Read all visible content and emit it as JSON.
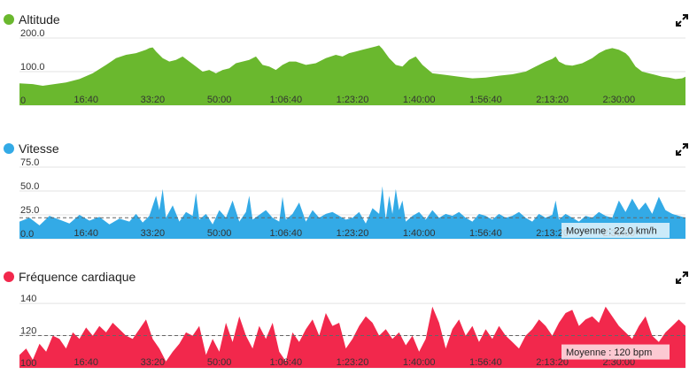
{
  "chart_data": [
    {
      "type": "area",
      "title": "Altitude",
      "color": "#6ab82e",
      "xlabel": "",
      "ylabel": "",
      "x_unit": "seconds",
      "xlim": [
        0,
        10000
      ],
      "ylim": [
        0,
        200
      ],
      "y_ticks": [
        {
          "value": 200,
          "label": "200.0"
        },
        {
          "value": 100,
          "label": "100.0"
        },
        {
          "value": 0,
          "label": "0"
        }
      ],
      "x_ticks": [
        {
          "value": 1000,
          "label": "16:40"
        },
        {
          "value": 2000,
          "label": "33:20"
        },
        {
          "value": 3000,
          "label": "50:00"
        },
        {
          "value": 4000,
          "label": "1:06:40"
        },
        {
          "value": 5000,
          "label": "1:23:20"
        },
        {
          "value": 6000,
          "label": "1:40:00"
        },
        {
          "value": 7000,
          "label": "1:56:40"
        },
        {
          "value": 8000,
          "label": "2:13:20"
        },
        {
          "value": 9000,
          "label": "2:30:00"
        }
      ],
      "x": [
        0,
        200,
        350,
        500,
        700,
        900,
        1100,
        1300,
        1450,
        1600,
        1750,
        1900,
        1950,
        2000,
        2050,
        2150,
        2250,
        2350,
        2450,
        2550,
        2650,
        2750,
        2850,
        2950,
        3050,
        3150,
        3250,
        3350,
        3450,
        3550,
        3650,
        3750,
        3850,
        3950,
        4050,
        4150,
        4300,
        4450,
        4600,
        4750,
        4850,
        4950,
        5050,
        5150,
        5250,
        5350,
        5400,
        5450,
        5550,
        5650,
        5750,
        5850,
        5950,
        6050,
        6200,
        6400,
        6600,
        6800,
        7000,
        7200,
        7400,
        7600,
        7750,
        7900,
        8000,
        8050,
        8100,
        8200,
        8300,
        8450,
        8600,
        8700,
        8800,
        8900,
        9000,
        9100,
        9150,
        9250,
        9350,
        9450,
        9550,
        9650,
        9750,
        9850,
        9950,
        10000
      ],
      "values": [
        65,
        63,
        58,
        62,
        68,
        78,
        95,
        120,
        140,
        150,
        155,
        165,
        170,
        172,
        160,
        140,
        130,
        135,
        145,
        130,
        115,
        100,
        105,
        95,
        105,
        110,
        125,
        130,
        135,
        145,
        120,
        115,
        105,
        120,
        130,
        130,
        120,
        125,
        140,
        150,
        145,
        155,
        160,
        165,
        170,
        175,
        178,
        168,
        140,
        120,
        115,
        135,
        145,
        120,
        95,
        90,
        85,
        80,
        82,
        88,
        92,
        100,
        115,
        130,
        138,
        145,
        130,
        120,
        118,
        125,
        140,
        155,
        165,
        170,
        165,
        155,
        145,
        115,
        100,
        95,
        90,
        85,
        82,
        78,
        80,
        85
      ]
    },
    {
      "type": "area",
      "title": "Vitesse",
      "color": "#33aae6",
      "xlabel": "",
      "ylabel": "",
      "x_unit": "seconds",
      "xlim": [
        0,
        10000
      ],
      "ylim": [
        0,
        75
      ],
      "y_ticks": [
        {
          "value": 75,
          "label": "75.0"
        },
        {
          "value": 50,
          "label": "50.0"
        },
        {
          "value": 25,
          "label": "25.0"
        },
        {
          "value": 0,
          "label": "0.0"
        }
      ],
      "x_ticks": [
        {
          "value": 1000,
          "label": "16:40"
        },
        {
          "value": 2000,
          "label": "33:20"
        },
        {
          "value": 3000,
          "label": "50:00"
        },
        {
          "value": 4000,
          "label": "1:06:40"
        },
        {
          "value": 5000,
          "label": "1:23:20"
        },
        {
          "value": 6000,
          "label": "1:40:00"
        },
        {
          "value": 7000,
          "label": "1:56:40"
        },
        {
          "value": 8000,
          "label": "2:13:20"
        },
        {
          "value": 9000,
          "label": "2:30:00"
        }
      ],
      "average": 22.0,
      "average_label": "Moyenne : 22.0 km/h",
      "x": [
        0,
        150,
        300,
        450,
        600,
        750,
        900,
        1050,
        1200,
        1350,
        1500,
        1650,
        1750,
        1850,
        1950,
        2050,
        2100,
        2150,
        2200,
        2300,
        2400,
        2500,
        2600,
        2650,
        2700,
        2800,
        2900,
        3000,
        3100,
        3200,
        3300,
        3400,
        3450,
        3500,
        3600,
        3700,
        3800,
        3900,
        3950,
        4000,
        4100,
        4200,
        4300,
        4400,
        4500,
        4600,
        4700,
        4800,
        4900,
        5000,
        5100,
        5200,
        5300,
        5400,
        5450,
        5500,
        5550,
        5600,
        5650,
        5700,
        5750,
        5800,
        5900,
        6000,
        6100,
        6200,
        6300,
        6400,
        6500,
        6600,
        6700,
        6800,
        6900,
        7000,
        7100,
        7200,
        7300,
        7400,
        7500,
        7600,
        7700,
        7800,
        7900,
        8000,
        8050,
        8100,
        8200,
        8300,
        8400,
        8500,
        8600,
        8700,
        8800,
        8900,
        9000,
        9100,
        9200,
        9300,
        9400,
        9500,
        9600,
        9700,
        9800,
        9900,
        10000
      ],
      "values": [
        18,
        22,
        14,
        24,
        20,
        16,
        25,
        19,
        23,
        15,
        21,
        18,
        26,
        17,
        24,
        45,
        30,
        52,
        22,
        35,
        18,
        28,
        24,
        48,
        20,
        26,
        15,
        30,
        22,
        40,
        18,
        28,
        45,
        20,
        25,
        30,
        22,
        18,
        44,
        20,
        26,
        38,
        18,
        30,
        22,
        26,
        28,
        24,
        20,
        22,
        28,
        16,
        32,
        26,
        55,
        20,
        45,
        26,
        52,
        30,
        40,
        18,
        24,
        28,
        20,
        30,
        22,
        26,
        24,
        28,
        22,
        18,
        26,
        24,
        20,
        26,
        22,
        24,
        28,
        22,
        18,
        26,
        22,
        25,
        40,
        20,
        26,
        22,
        18,
        24,
        22,
        28,
        24,
        22,
        40,
        28,
        42,
        30,
        38,
        26,
        44,
        30,
        26,
        24,
        22
      ]
    },
    {
      "type": "area",
      "title": "Fréquence cardiaque",
      "color": "#f2284c",
      "xlabel": "",
      "ylabel": "",
      "x_unit": "seconds",
      "xlim": [
        0,
        10000
      ],
      "ylim": [
        100,
        145
      ],
      "y_ticks": [
        {
          "value": 140,
          "label": "140"
        },
        {
          "value": 120,
          "label": "120"
        },
        {
          "value": 100,
          "label": "100"
        }
      ],
      "x_ticks": [
        {
          "value": 1000,
          "label": "16:40"
        },
        {
          "value": 2000,
          "label": "33:20"
        },
        {
          "value": 3000,
          "label": "50:00"
        },
        {
          "value": 4000,
          "label": "1:06:40"
        },
        {
          "value": 5000,
          "label": "1:23:20"
        },
        {
          "value": 6000,
          "label": "1:40:00"
        },
        {
          "value": 7000,
          "label": "1:56:40"
        },
        {
          "value": 8000,
          "label": "2:13:20"
        },
        {
          "value": 9000,
          "label": "2:30:00"
        }
      ],
      "average": 120,
      "average_label": "Moyenne : 120 bpm",
      "x": [
        0,
        100,
        200,
        300,
        400,
        500,
        600,
        700,
        800,
        900,
        1000,
        1100,
        1200,
        1300,
        1400,
        1500,
        1600,
        1700,
        1800,
        1900,
        2000,
        2100,
        2200,
        2300,
        2400,
        2500,
        2600,
        2700,
        2800,
        2900,
        3000,
        3100,
        3200,
        3300,
        3400,
        3500,
        3600,
        3700,
        3800,
        3900,
        4000,
        4100,
        4200,
        4300,
        4400,
        4500,
        4600,
        4700,
        4800,
        4900,
        5000,
        5100,
        5200,
        5300,
        5400,
        5500,
        5600,
        5700,
        5800,
        5900,
        6000,
        6100,
        6200,
        6300,
        6400,
        6500,
        6600,
        6700,
        6800,
        6900,
        7000,
        7100,
        7200,
        7300,
        7400,
        7500,
        7600,
        7700,
        7800,
        7900,
        8000,
        8100,
        8200,
        8300,
        8400,
        8500,
        8600,
        8700,
        8800,
        8900,
        9000,
        9100,
        9200,
        9300,
        9400,
        9500,
        9600,
        9700,
        9800,
        9900,
        10000
      ],
      "values": [
        108,
        112,
        105,
        115,
        110,
        120,
        118,
        112,
        122,
        118,
        125,
        120,
        126,
        122,
        128,
        124,
        120,
        118,
        124,
        130,
        118,
        112,
        104,
        110,
        115,
        122,
        120,
        126,
        108,
        118,
        110,
        128,
        116,
        132,
        120,
        112,
        126,
        118,
        128,
        110,
        104,
        122,
        116,
        124,
        130,
        120,
        134,
        126,
        128,
        112,
        118,
        126,
        132,
        128,
        120,
        124,
        118,
        122,
        114,
        120,
        110,
        118,
        138,
        128,
        112,
        124,
        130,
        120,
        126,
        116,
        124,
        118,
        126,
        120,
        116,
        112,
        120,
        124,
        130,
        126,
        120,
        128,
        134,
        136,
        126,
        130,
        132,
        128,
        138,
        132,
        126,
        122,
        118,
        126,
        132,
        120,
        116,
        122,
        126,
        130,
        126
      ]
    }
  ]
}
